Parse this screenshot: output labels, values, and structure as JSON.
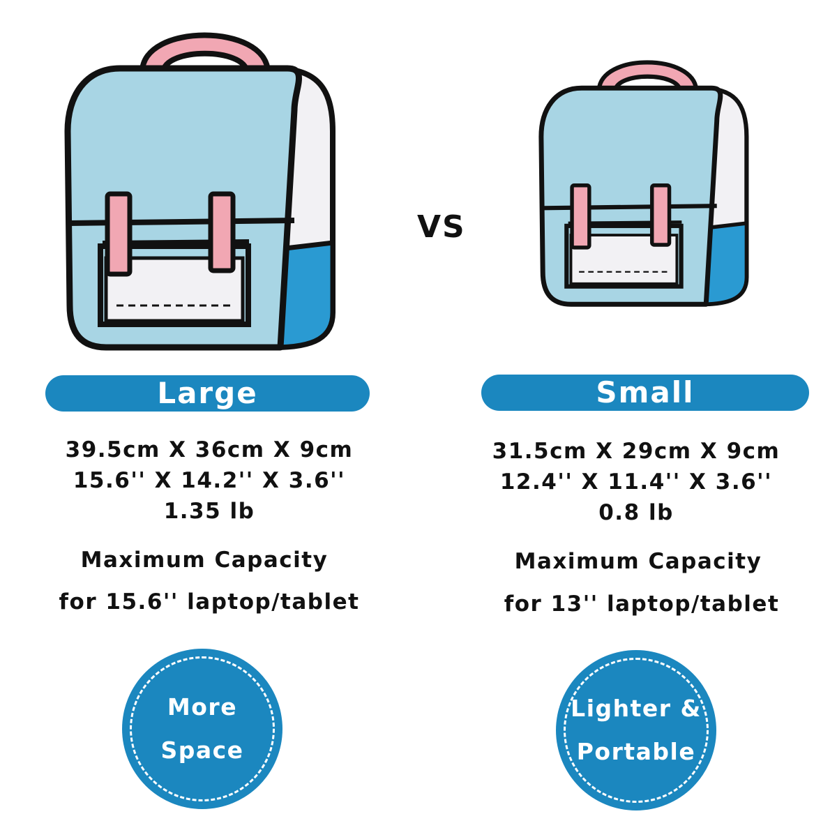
{
  "colors": {
    "accent": "#1b87bf",
    "bag_light_blue": "#a8d5e4",
    "bag_dark_blue": "#2a9ad2",
    "bag_pink": "#f1a7b3",
    "outline": "#111111"
  },
  "separator": "VS",
  "large": {
    "label": "Large",
    "dimensions_cm": "39.5cm X 36cm X 9cm",
    "dimensions_in": "15.6'' X 14.2'' X 3.6''",
    "weight": "1.35 lb",
    "capacity_title": "Maximum Capacity",
    "capacity_detail": "for 15.6'' laptop/tablet",
    "badge_line1": "More",
    "badge_line2": "Space"
  },
  "small": {
    "label": "Small",
    "dimensions_cm": "31.5cm X 29cm X 9cm",
    "dimensions_in": "12.4'' X 11.4'' X 3.6''",
    "weight": "0.8 lb",
    "capacity_title": "Maximum Capacity",
    "capacity_detail": "for 13'' laptop/tablet",
    "badge_line1": "Lighter &",
    "badge_line2": "Portable"
  }
}
